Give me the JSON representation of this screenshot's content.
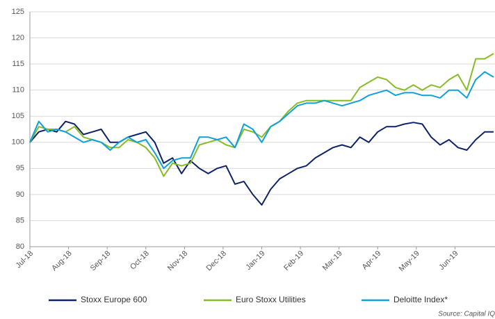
{
  "chart_data": {
    "type": "line",
    "x_tick_labels": [
      "Jul-18",
      "Aug-18",
      "Sep-18",
      "Oct-18",
      "Nov-18",
      "Dec-18",
      "Jan-19",
      "Feb-19",
      "Mar-19",
      "Apr-19",
      "May-19",
      "Jun-19"
    ],
    "ylim": [
      80,
      125
    ],
    "yticks": [
      80,
      85,
      90,
      95,
      100,
      105,
      110,
      115,
      120,
      125
    ],
    "grid": true,
    "source": "Source: Capital IQ",
    "series": [
      {
        "name": "Stoxx Europe 600",
        "color": "#0d2366",
        "values": [
          100,
          102,
          102.5,
          102,
          104,
          103.5,
          101.5,
          102,
          102.5,
          100,
          100,
          101,
          101.5,
          102,
          100,
          96,
          97,
          94,
          96.5,
          95,
          94,
          95,
          95.5,
          92,
          92.5,
          90,
          88,
          91,
          93,
          94,
          95,
          95.5,
          97,
          98,
          99,
          99.5,
          99,
          101,
          100,
          102,
          103,
          103,
          103.5,
          103.8,
          103.5,
          101,
          99.5,
          100.5,
          99,
          98.5,
          100.5,
          102,
          102
        ]
      },
      {
        "name": "Euro Stoxx Utilities",
        "color": "#86bc25",
        "values": [
          100,
          103,
          102.5,
          102.5,
          102,
          103,
          101,
          100.5,
          100,
          99,
          99,
          100.5,
          100,
          99,
          97,
          93.5,
          96,
          95.5,
          96,
          99.5,
          100,
          100.5,
          99.5,
          99,
          102.5,
          102,
          101,
          103,
          104,
          106,
          107.5,
          108,
          108,
          108,
          108,
          108,
          108,
          110.5,
          111.5,
          112.5,
          112,
          110.5,
          110,
          111,
          110,
          111,
          110.5,
          112,
          113,
          110,
          116,
          116,
          117
        ]
      },
      {
        "name": "Deloitte Index*",
        "color": "#0fa0dc",
        "values": [
          100,
          104,
          102,
          102.5,
          102,
          101,
          100,
          100.5,
          100,
          98.5,
          100,
          101,
          100,
          100.5,
          98,
          95,
          96.5,
          97,
          97,
          101,
          101,
          100.5,
          101,
          99,
          103.5,
          102.5,
          100,
          103,
          104,
          105.5,
          107,
          107.5,
          107.5,
          108,
          107.5,
          107,
          107.5,
          108,
          109,
          109.5,
          110,
          109,
          109.5,
          109.5,
          109,
          109,
          108.5,
          110,
          110,
          108.5,
          112,
          113.5,
          112.5
        ]
      }
    ]
  }
}
